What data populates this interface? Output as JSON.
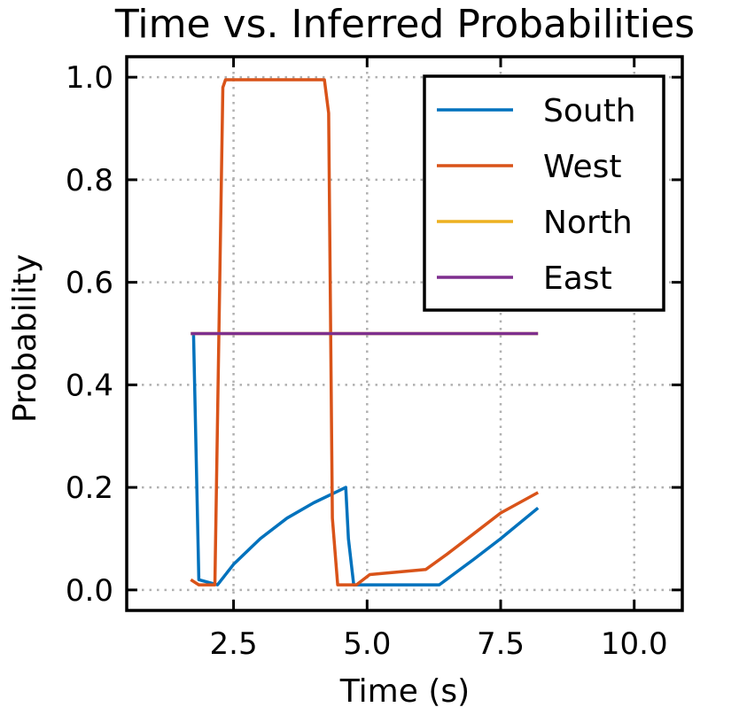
{
  "chart_data": {
    "type": "line",
    "title": "Time vs. Inferred Probabilities",
    "xlabel": "Time (s)",
    "ylabel": "Probability",
    "xlim": [
      0.5,
      10.9
    ],
    "ylim": [
      -0.04,
      1.04
    ],
    "xticks": [
      2.5,
      5.0,
      7.5,
      10.0
    ],
    "xtick_labels": [
      "2.5",
      "5.0",
      "7.5",
      "10.0"
    ],
    "yticks": [
      0.0,
      0.2,
      0.4,
      0.6,
      0.8,
      1.0
    ],
    "ytick_labels": [
      "0.0",
      "0.2",
      "0.4",
      "0.6",
      "0.8",
      "1.0"
    ],
    "grid": true,
    "legend_position": "top-right",
    "series": [
      {
        "name": "South",
        "color": "#0072BD",
        "x": [
          1.75,
          1.85,
          2.2,
          2.5,
          3.0,
          3.5,
          4.0,
          4.6,
          4.65,
          4.75,
          5.0,
          6.0,
          6.35,
          7.0,
          7.5,
          8.2
        ],
        "y": [
          0.5,
          0.02,
          0.01,
          0.05,
          0.1,
          0.14,
          0.17,
          0.2,
          0.1,
          0.01,
          0.01,
          0.01,
          0.01,
          0.06,
          0.1,
          0.16
        ]
      },
      {
        "name": "West",
        "color": "#D95319",
        "x": [
          1.7,
          1.85,
          2.15,
          2.3,
          2.35,
          3.0,
          4.0,
          4.2,
          4.28,
          4.35,
          4.45,
          4.8,
          5.05,
          6.1,
          6.5,
          7.0,
          7.5,
          8.2
        ],
        "y": [
          0.02,
          0.01,
          0.01,
          0.98,
          0.995,
          0.995,
          0.995,
          0.995,
          0.93,
          0.14,
          0.01,
          0.01,
          0.03,
          0.04,
          0.07,
          0.11,
          0.15,
          0.19
        ]
      },
      {
        "name": "North",
        "color": "#EDB120",
        "x": [
          1.7,
          8.2
        ],
        "y": [
          0.5,
          0.5
        ]
      },
      {
        "name": "East",
        "color": "#7E2F8E",
        "x": [
          1.7,
          8.2
        ],
        "y": [
          0.5,
          0.5
        ]
      }
    ]
  }
}
